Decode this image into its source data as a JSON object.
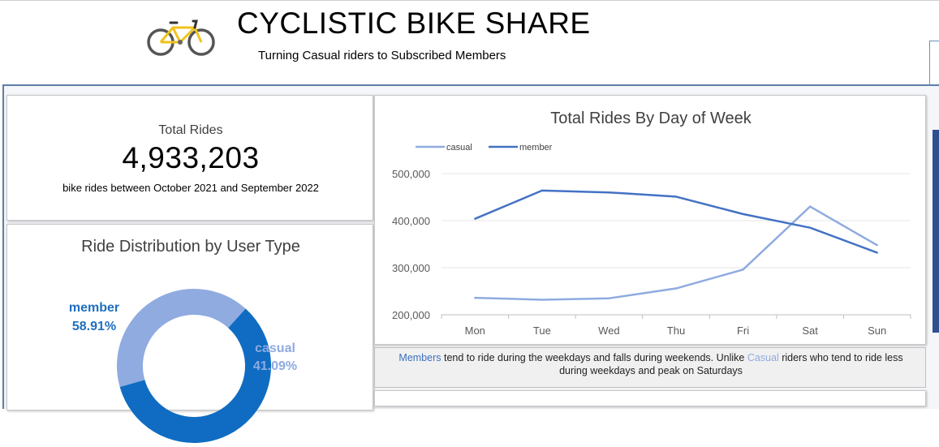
{
  "header": {
    "title": "CYCLISTIC BIKE SHARE",
    "subtitle": "Turning Casual riders to Subscribed Members",
    "logo_icon": "bicycle-icon"
  },
  "kpi": {
    "label": "Total Rides",
    "value": "4,933,203",
    "caption": "bike rides between October 2021 and September 2022"
  },
  "distribution": {
    "title": "Ride Distribution by User Type",
    "segments": [
      {
        "name": "member",
        "pct_label": "58.91%",
        "value": 58.91,
        "color": "#0f6cc2"
      },
      {
        "name": "casual",
        "pct_label": "41.09%",
        "value": 41.09,
        "color": "#8fabe0"
      }
    ]
  },
  "note": {
    "member_word": "Members",
    "part1": " tend to ride during the weekdays and falls during weekends. Unlike ",
    "casual_word": "Casual",
    "part2": " riders who tend to ride less during weekdays and peak on Saturdays"
  },
  "chart_data": {
    "type": "line",
    "title": "Total Rides By Day of Week",
    "categories": [
      "Mon",
      "Tue",
      "Wed",
      "Thu",
      "Fri",
      "Sat",
      "Sun"
    ],
    "series": [
      {
        "name": "casual",
        "color": "#8fabe0",
        "values": [
          236000,
          232000,
          235000,
          256000,
          296000,
          430000,
          348000
        ]
      },
      {
        "name": "member",
        "color": "#4472c4",
        "values": [
          404000,
          464000,
          460000,
          451000,
          414000,
          385000,
          332000
        ]
      }
    ],
    "ylim": [
      200000,
      500000
    ],
    "yticks": [
      "200,000",
      "300,000",
      "400,000",
      "500,000"
    ],
    "ytick_values": [
      200000,
      300000,
      400000,
      500000
    ],
    "grid": true,
    "legend": "top-left"
  }
}
